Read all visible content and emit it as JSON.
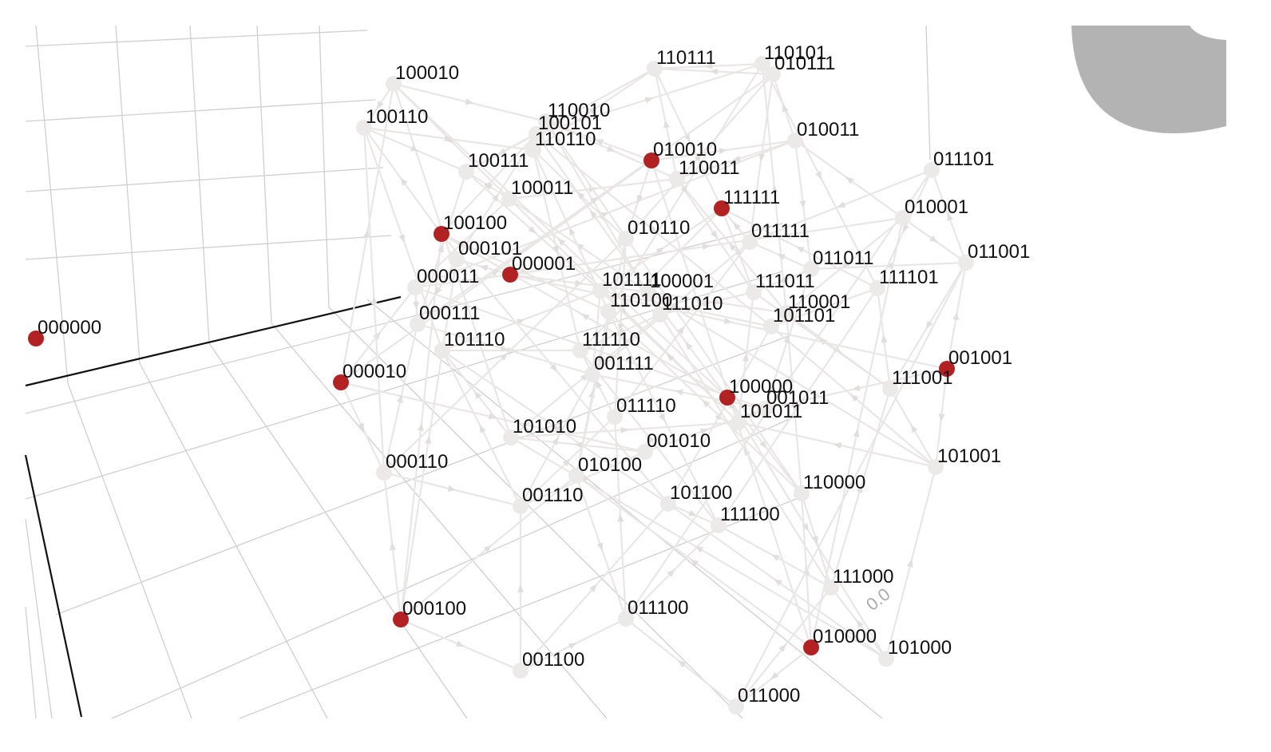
{
  "colors": {
    "highlight": "#b22222",
    "node": "#ece9e9",
    "edge": "#e9e6e6",
    "grid": "#cfcfcf",
    "axis": "#111111",
    "blob": "#b3b3b3"
  },
  "axis_tick_labels": {
    "z0": "0.0"
  },
  "nodes": [
    {
      "id": "000000",
      "hl": true
    },
    {
      "id": "000001",
      "hl": true
    },
    {
      "id": "000010",
      "hl": true
    },
    {
      "id": "000011",
      "hl": false
    },
    {
      "id": "000100",
      "hl": true
    },
    {
      "id": "000101",
      "hl": false
    },
    {
      "id": "000110",
      "hl": false
    },
    {
      "id": "000111",
      "hl": false
    },
    {
      "id": "001001",
      "hl": true
    },
    {
      "id": "001010",
      "hl": false
    },
    {
      "id": "001011",
      "hl": false
    },
    {
      "id": "001100",
      "hl": false
    },
    {
      "id": "001110",
      "hl": false
    },
    {
      "id": "001111",
      "hl": false
    },
    {
      "id": "010000",
      "hl": true
    },
    {
      "id": "010001",
      "hl": false
    },
    {
      "id": "010010",
      "hl": true
    },
    {
      "id": "010011",
      "hl": false
    },
    {
      "id": "010100",
      "hl": false
    },
    {
      "id": "010110",
      "hl": false
    },
    {
      "id": "010111",
      "hl": false
    },
    {
      "id": "011000",
      "hl": false
    },
    {
      "id": "011001",
      "hl": false
    },
    {
      "id": "011011",
      "hl": false
    },
    {
      "id": "011100",
      "hl": false
    },
    {
      "id": "011101",
      "hl": false
    },
    {
      "id": "011110",
      "hl": false
    },
    {
      "id": "011111",
      "hl": false
    },
    {
      "id": "100000",
      "hl": true
    },
    {
      "id": "100001",
      "hl": false
    },
    {
      "id": "100010",
      "hl": false
    },
    {
      "id": "100011",
      "hl": false
    },
    {
      "id": "100100",
      "hl": true
    },
    {
      "id": "100101",
      "hl": false
    },
    {
      "id": "100110",
      "hl": false
    },
    {
      "id": "100111",
      "hl": false
    },
    {
      "id": "101000",
      "hl": false
    },
    {
      "id": "101001",
      "hl": false
    },
    {
      "id": "101010",
      "hl": false
    },
    {
      "id": "101011",
      "hl": false
    },
    {
      "id": "101100",
      "hl": false
    },
    {
      "id": "101101",
      "hl": false
    },
    {
      "id": "101110",
      "hl": false
    },
    {
      "id": "101111",
      "hl": false
    },
    {
      "id": "110000",
      "hl": false
    },
    {
      "id": "110001",
      "hl": false
    },
    {
      "id": "110010",
      "hl": false
    },
    {
      "id": "110011",
      "hl": false
    },
    {
      "id": "110100",
      "hl": false
    },
    {
      "id": "110101",
      "hl": false
    },
    {
      "id": "110110",
      "hl": false
    },
    {
      "id": "110111",
      "hl": false
    },
    {
      "id": "111000",
      "hl": false
    },
    {
      "id": "111001",
      "hl": false
    },
    {
      "id": "111010",
      "hl": false
    },
    {
      "id": "111011",
      "hl": false
    },
    {
      "id": "111100",
      "hl": false
    },
    {
      "id": "111101",
      "hl": false
    },
    {
      "id": "111110",
      "hl": false
    },
    {
      "id": "111111",
      "hl": true
    }
  ]
}
